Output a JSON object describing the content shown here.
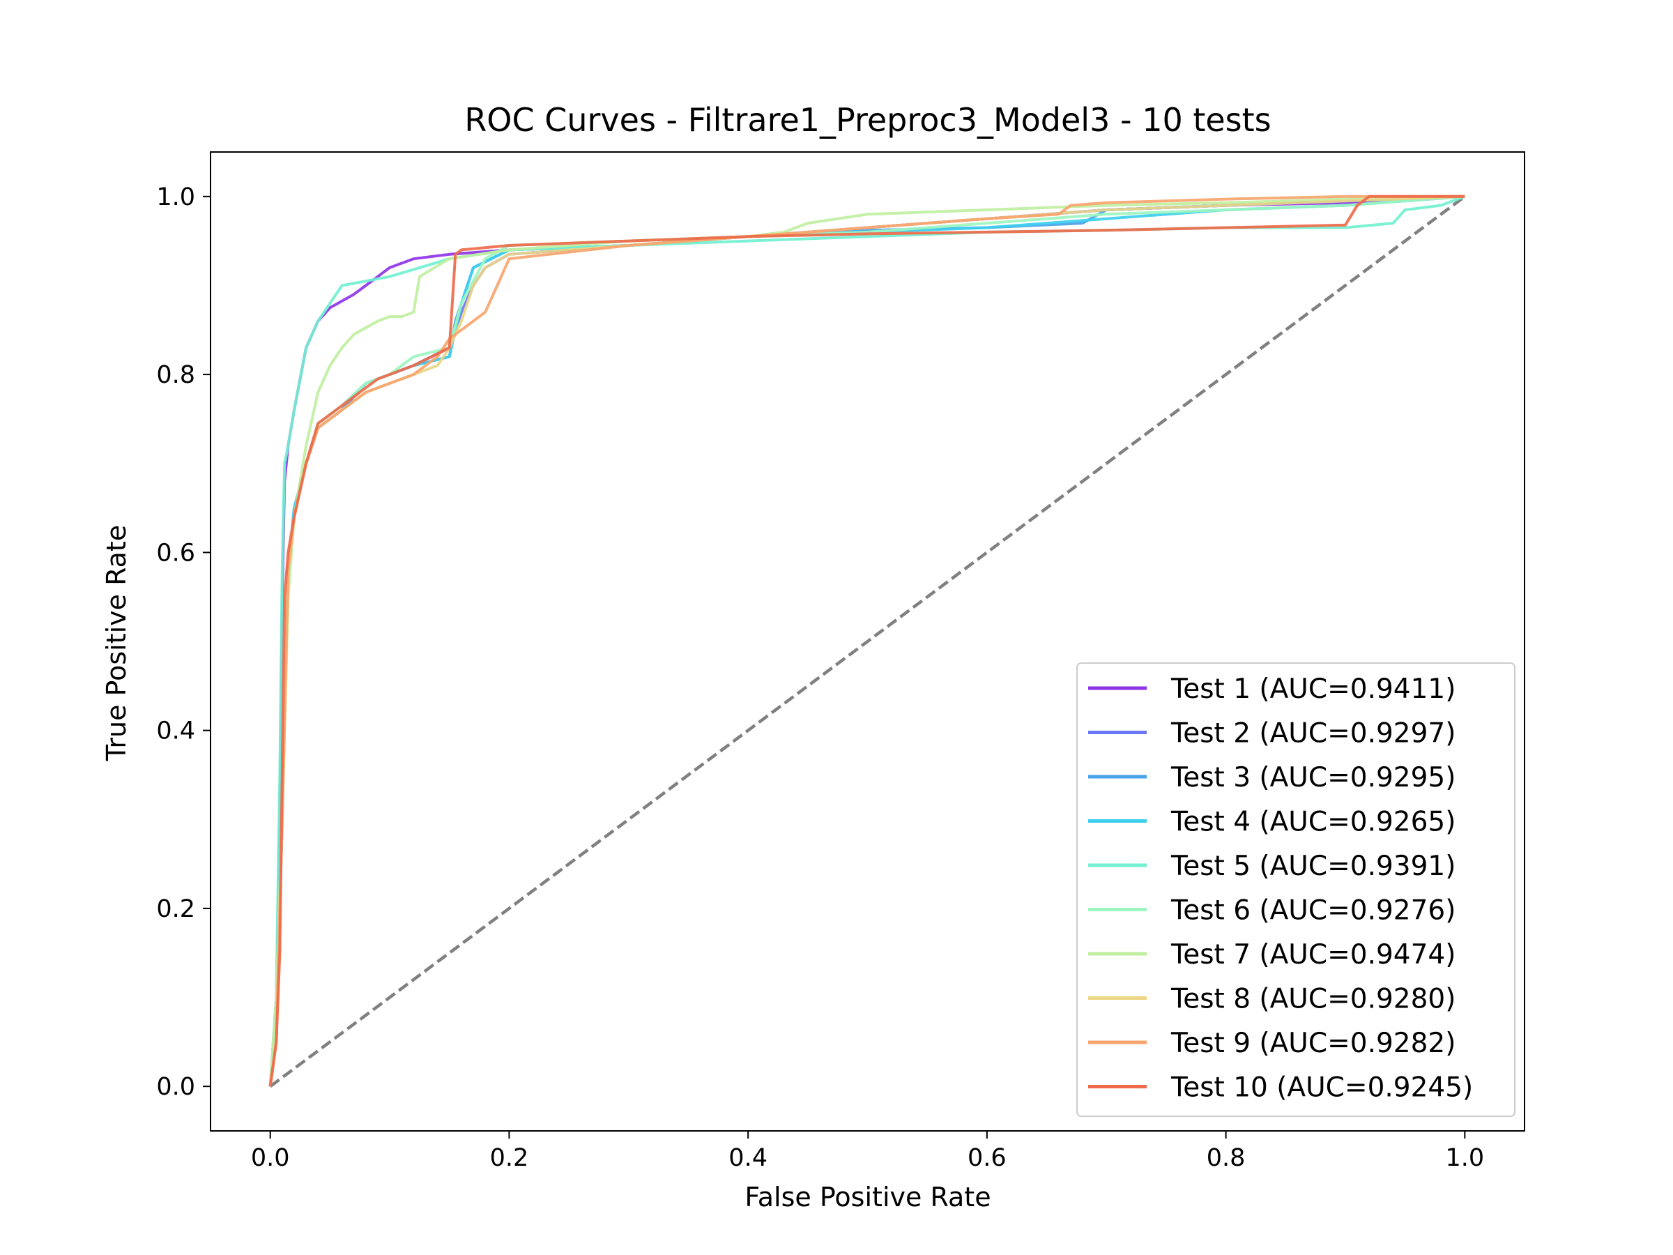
{
  "chart_data": {
    "type": "line",
    "title": "ROC Curves - Filtrare1_Preproc3_Model3 - 10 tests",
    "xlabel": "False Positive Rate",
    "ylabel": "True Positive Rate",
    "xlim": [
      -0.05,
      1.05
    ],
    "ylim": [
      -0.05,
      1.05
    ],
    "xticks": [
      0.0,
      0.2,
      0.4,
      0.6,
      0.8,
      1.0
    ],
    "yticks": [
      0.0,
      0.2,
      0.4,
      0.6,
      0.8,
      1.0
    ],
    "xtick_labels": [
      "0.0",
      "0.2",
      "0.4",
      "0.6",
      "0.8",
      "1.0"
    ],
    "ytick_labels": [
      "0.0",
      "0.2",
      "0.4",
      "0.6",
      "0.8",
      "1.0"
    ],
    "grid": false,
    "legend_position": "lower-right",
    "reference_line": {
      "x": [
        0,
        1
      ],
      "y": [
        0,
        1
      ],
      "color": "#808080",
      "style": "dashed"
    },
    "series": [
      {
        "name": "Test 1 (AUC=0.9411)",
        "color": "#8e34e8",
        "x": [
          0,
          0.005,
          0.008,
          0.01,
          0.012,
          0.015,
          0.02,
          0.03,
          0.04,
          0.05,
          0.07,
          0.08,
          0.09,
          0.1,
          0.12,
          0.15,
          0.2,
          0.3,
          0.4,
          0.5,
          0.6,
          0.7,
          0.8,
          0.9,
          0.95,
          1.0
        ],
        "y": [
          0,
          0.1,
          0.3,
          0.55,
          0.68,
          0.72,
          0.76,
          0.83,
          0.86,
          0.875,
          0.89,
          0.9,
          0.91,
          0.92,
          0.93,
          0.935,
          0.94,
          0.945,
          0.955,
          0.965,
          0.975,
          0.985,
          0.99,
          0.993,
          0.995,
          1.0
        ]
      },
      {
        "name": "Test 2 (AUC=0.9297)",
        "color": "#6b78f5",
        "x": [
          0,
          0.005,
          0.01,
          0.015,
          0.02,
          0.03,
          0.04,
          0.06,
          0.08,
          0.1,
          0.12,
          0.15,
          0.155,
          0.16,
          0.17,
          0.18,
          0.2,
          0.3,
          0.4,
          0.5,
          0.6,
          0.7,
          0.8,
          0.9,
          1.0
        ],
        "y": [
          0,
          0.05,
          0.3,
          0.58,
          0.64,
          0.7,
          0.74,
          0.76,
          0.79,
          0.8,
          0.81,
          0.83,
          0.85,
          0.87,
          0.9,
          0.92,
          0.935,
          0.945,
          0.955,
          0.965,
          0.975,
          0.985,
          0.99,
          0.995,
          1.0
        ]
      },
      {
        "name": "Test 3 (AUC=0.9295)",
        "color": "#4aa2e8",
        "x": [
          0,
          0.005,
          0.01,
          0.015,
          0.02,
          0.03,
          0.04,
          0.06,
          0.08,
          0.1,
          0.12,
          0.15,
          0.155,
          0.16,
          0.17,
          0.2,
          0.3,
          0.4,
          0.5,
          0.6,
          0.68,
          0.7,
          0.8,
          0.9,
          1.0
        ],
        "y": [
          0,
          0.05,
          0.3,
          0.58,
          0.65,
          0.7,
          0.74,
          0.76,
          0.79,
          0.8,
          0.81,
          0.82,
          0.86,
          0.88,
          0.92,
          0.94,
          0.945,
          0.955,
          0.962,
          0.965,
          0.97,
          0.985,
          0.99,
          0.995,
          1.0
        ]
      },
      {
        "name": "Test 4 (AUC=0.9265)",
        "color": "#3ecfee",
        "x": [
          0,
          0.005,
          0.01,
          0.015,
          0.02,
          0.03,
          0.04,
          0.06,
          0.08,
          0.1,
          0.12,
          0.15,
          0.155,
          0.16,
          0.17,
          0.2,
          0.3,
          0.4,
          0.5,
          0.6,
          0.7,
          0.8,
          0.9,
          1.0
        ],
        "y": [
          0,
          0.05,
          0.3,
          0.58,
          0.65,
          0.7,
          0.745,
          0.765,
          0.79,
          0.8,
          0.81,
          0.82,
          0.85,
          0.88,
          0.92,
          0.94,
          0.945,
          0.955,
          0.96,
          0.965,
          0.975,
          0.985,
          0.99,
          1.0
        ]
      },
      {
        "name": "Test 5 (AUC=0.9391)",
        "color": "#72f0d0",
        "x": [
          0,
          0.005,
          0.008,
          0.01,
          0.012,
          0.015,
          0.02,
          0.03,
          0.04,
          0.05,
          0.06,
          0.08,
          0.1,
          0.15,
          0.2,
          0.3,
          0.4,
          0.5,
          0.6,
          0.7,
          0.8,
          0.85,
          0.9,
          0.94,
          0.95,
          0.98,
          1.0
        ],
        "y": [
          0,
          0.1,
          0.35,
          0.58,
          0.7,
          0.72,
          0.76,
          0.83,
          0.86,
          0.88,
          0.9,
          0.905,
          0.91,
          0.93,
          0.94,
          0.945,
          0.95,
          0.955,
          0.96,
          0.962,
          0.965,
          0.965,
          0.965,
          0.97,
          0.985,
          0.99,
          1.0
        ]
      },
      {
        "name": "Test 6 (AUC=0.9276)",
        "color": "#9cf6c0",
        "x": [
          0,
          0.005,
          0.01,
          0.015,
          0.02,
          0.03,
          0.04,
          0.06,
          0.08,
          0.1,
          0.12,
          0.15,
          0.16,
          0.18,
          0.2,
          0.3,
          0.4,
          0.5,
          0.6,
          0.7,
          0.8,
          0.9,
          1.0
        ],
        "y": [
          0,
          0.05,
          0.3,
          0.58,
          0.64,
          0.7,
          0.745,
          0.765,
          0.79,
          0.8,
          0.82,
          0.83,
          0.88,
          0.93,
          0.945,
          0.95,
          0.955,
          0.96,
          0.97,
          0.98,
          0.985,
          0.99,
          1.0
        ]
      },
      {
        "name": "Test 7 (AUC=0.9474)",
        "color": "#c0efa0",
        "x": [
          0,
          0.005,
          0.01,
          0.015,
          0.02,
          0.03,
          0.04,
          0.05,
          0.06,
          0.07,
          0.09,
          0.1,
          0.11,
          0.12,
          0.125,
          0.15,
          0.2,
          0.3,
          0.4,
          0.43,
          0.45,
          0.5,
          0.6,
          0.7,
          0.8,
          0.9,
          1.0
        ],
        "y": [
          0,
          0.1,
          0.3,
          0.55,
          0.64,
          0.72,
          0.78,
          0.81,
          0.83,
          0.845,
          0.86,
          0.865,
          0.865,
          0.87,
          0.91,
          0.93,
          0.94,
          0.95,
          0.955,
          0.96,
          0.97,
          0.98,
          0.985,
          0.99,
          0.993,
          0.997,
          1.0
        ]
      },
      {
        "name": "Test 8 (AUC=0.9280)",
        "color": "#ecd585",
        "x": [
          0,
          0.005,
          0.01,
          0.015,
          0.02,
          0.03,
          0.04,
          0.06,
          0.08,
          0.1,
          0.12,
          0.14,
          0.15,
          0.16,
          0.17,
          0.18,
          0.2,
          0.3,
          0.4,
          0.5,
          0.6,
          0.7,
          0.8,
          0.9,
          1.0
        ],
        "y": [
          0,
          0.05,
          0.3,
          0.58,
          0.64,
          0.7,
          0.74,
          0.76,
          0.78,
          0.79,
          0.8,
          0.81,
          0.83,
          0.86,
          0.9,
          0.92,
          0.935,
          0.945,
          0.955,
          0.965,
          0.975,
          0.985,
          0.99,
          0.995,
          1.0
        ]
      },
      {
        "name": "Test 9 (AUC=0.9282)",
        "color": "#f7a56e",
        "x": [
          0,
          0.005,
          0.01,
          0.015,
          0.02,
          0.03,
          0.04,
          0.06,
          0.08,
          0.1,
          0.12,
          0.14,
          0.15,
          0.16,
          0.17,
          0.18,
          0.19,
          0.2,
          0.3,
          0.4,
          0.5,
          0.6,
          0.66,
          0.67,
          0.7,
          0.8,
          0.9,
          1.0
        ],
        "y": [
          0,
          0.05,
          0.3,
          0.58,
          0.64,
          0.7,
          0.74,
          0.76,
          0.78,
          0.79,
          0.8,
          0.82,
          0.84,
          0.85,
          0.86,
          0.87,
          0.9,
          0.93,
          0.945,
          0.955,
          0.965,
          0.975,
          0.98,
          0.99,
          0.993,
          0.997,
          1.0,
          1.0
        ]
      },
      {
        "name": "Test 10 (AUC=0.9245)",
        "color": "#ee6a4a",
        "x": [
          0,
          0.005,
          0.008,
          0.01,
          0.012,
          0.015,
          0.02,
          0.03,
          0.04,
          0.06,
          0.08,
          0.09,
          0.1,
          0.12,
          0.15,
          0.155,
          0.16,
          0.2,
          0.3,
          0.4,
          0.5,
          0.6,
          0.7,
          0.8,
          0.9,
          0.91,
          0.92,
          1.0
        ],
        "y": [
          0,
          0.05,
          0.15,
          0.35,
          0.55,
          0.6,
          0.64,
          0.7,
          0.745,
          0.765,
          0.785,
          0.795,
          0.8,
          0.81,
          0.83,
          0.935,
          0.94,
          0.945,
          0.95,
          0.955,
          0.958,
          0.96,
          0.962,
          0.965,
          0.968,
          0.99,
          1.0,
          1.0
        ]
      }
    ]
  }
}
